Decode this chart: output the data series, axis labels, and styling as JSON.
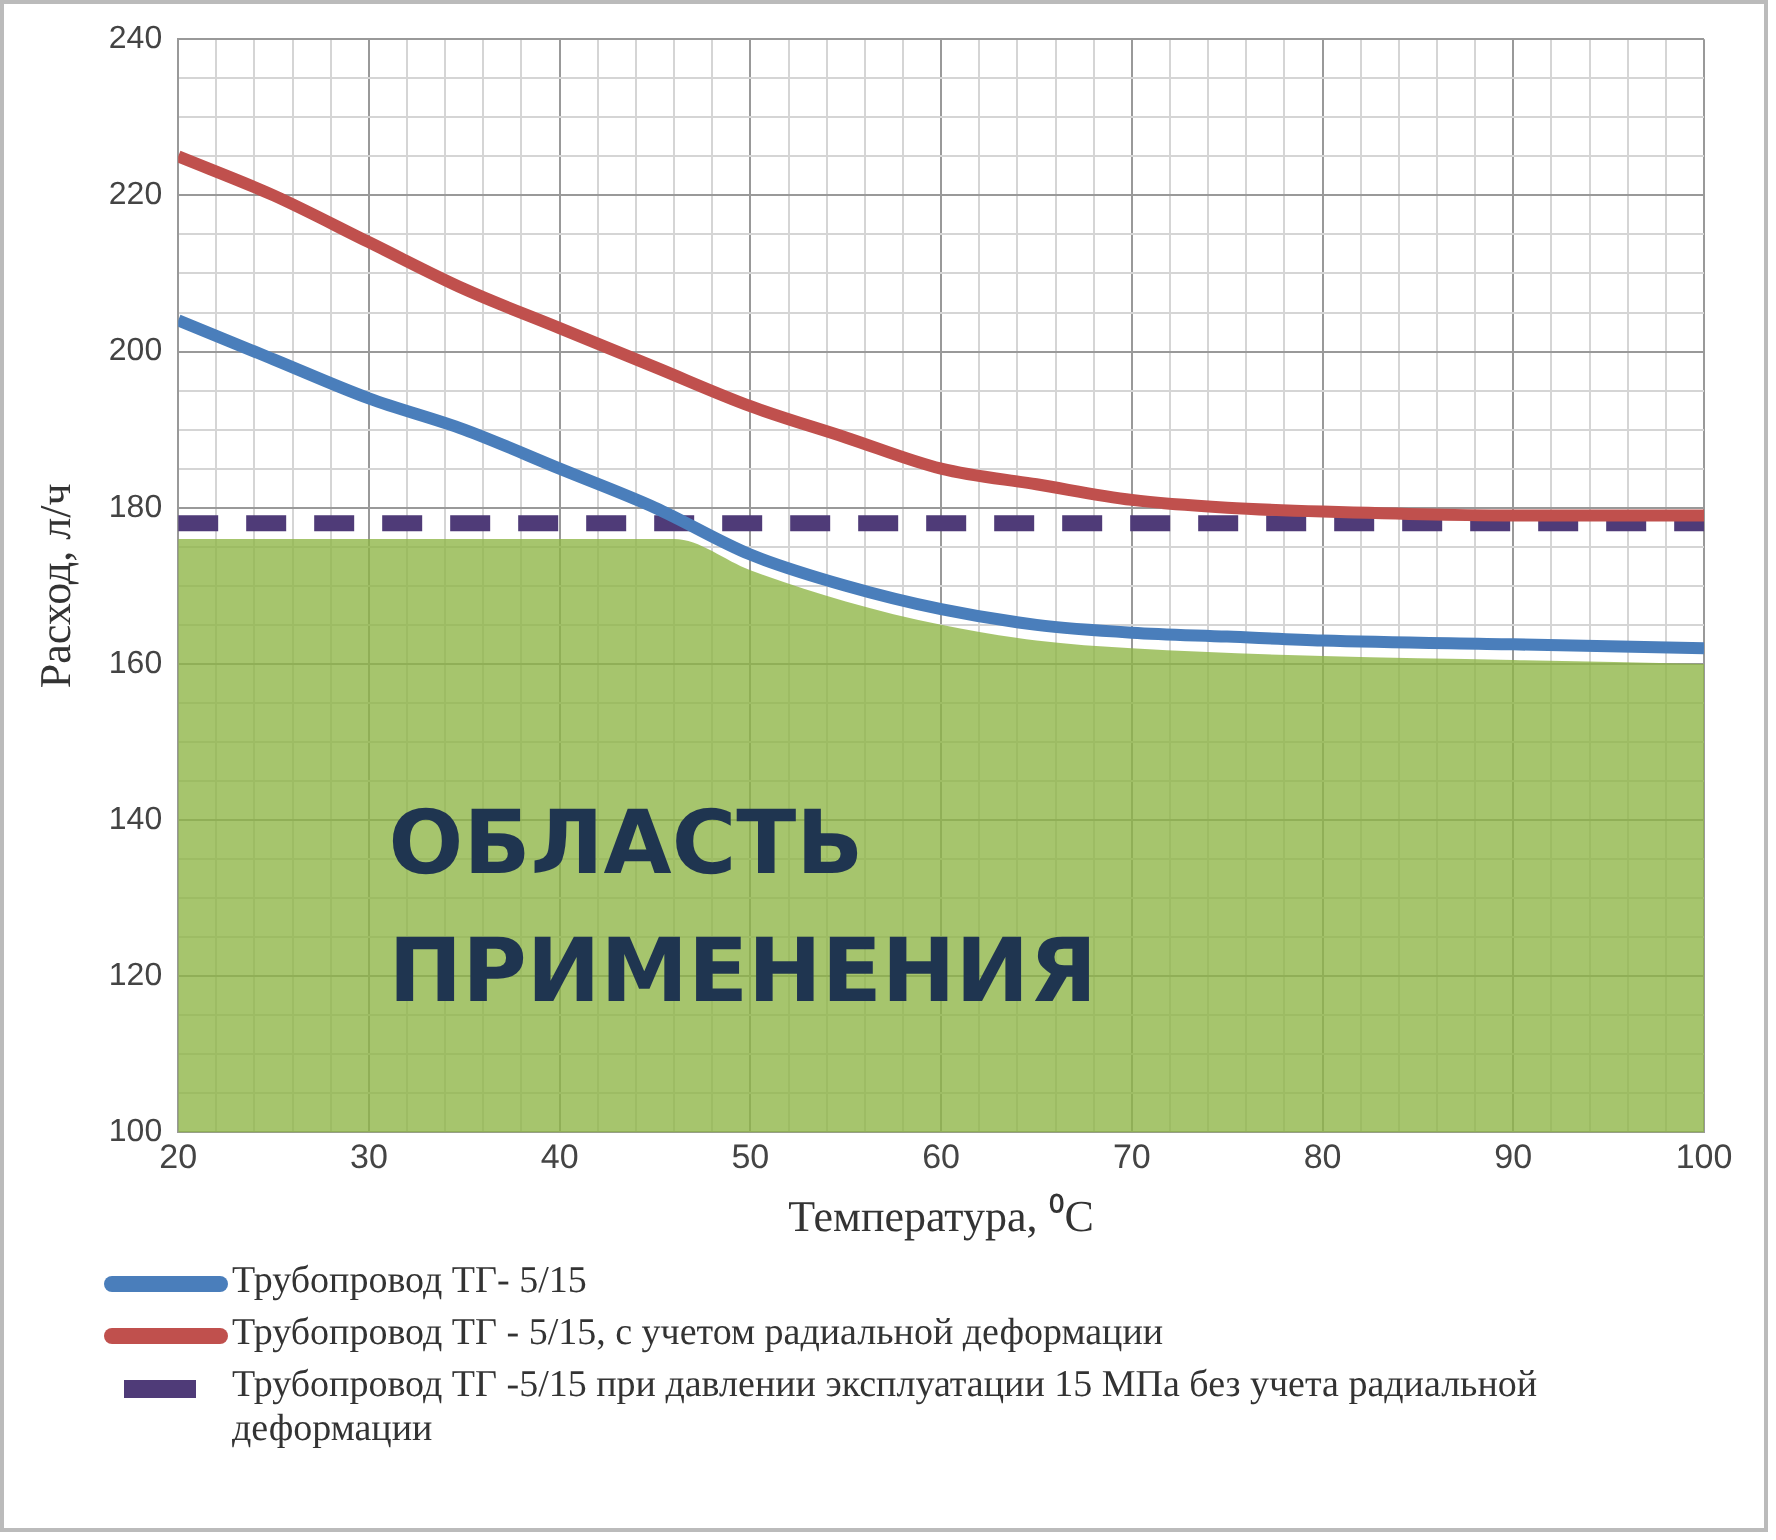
{
  "chart_data": {
    "type": "line",
    "xlabel": "Температура, ⁰C",
    "ylabel": "Расход, л/ч",
    "xlim": [
      20,
      100
    ],
    "ylim": [
      100,
      240
    ],
    "xticks": [
      20,
      {
        "value": 22,
        "label": null
      },
      {
        "value": 24,
        "label": null
      },
      {
        "value": 26,
        "label": null
      },
      {
        "value": 28,
        "label": null
      },
      30,
      {
        "value": 32,
        "label": null
      },
      {
        "value": 34,
        "label": null
      },
      {
        "value": 36,
        "label": null
      },
      {
        "value": 38,
        "label": null
      },
      40,
      {
        "value": 42,
        "label": null
      },
      {
        "value": 44,
        "label": null
      },
      {
        "value": 46,
        "label": null
      },
      {
        "value": 48,
        "label": null
      },
      50,
      {
        "value": 52,
        "label": null
      },
      {
        "value": 54,
        "label": null
      },
      {
        "value": 56,
        "label": null
      },
      {
        "value": 58,
        "label": null
      },
      60,
      {
        "value": 62,
        "label": null
      },
      {
        "value": 64,
        "label": null
      },
      {
        "value": 66,
        "label": null
      },
      {
        "value": 68,
        "label": null
      },
      70,
      {
        "value": 72,
        "label": null
      },
      {
        "value": 74,
        "label": null
      },
      {
        "value": 76,
        "label": null
      },
      {
        "value": 78,
        "label": null
      },
      80,
      {
        "value": 82,
        "label": null
      },
      {
        "value": 84,
        "label": null
      },
      {
        "value": 86,
        "label": null
      },
      {
        "value": 88,
        "label": null
      },
      90,
      {
        "value": 92,
        "label": null
      },
      {
        "value": 94,
        "label": null
      },
      {
        "value": 96,
        "label": null
      },
      {
        "value": 98,
        "label": null
      },
      100
    ],
    "yticks": [
      100,
      {
        "value": 105,
        "label": null
      },
      {
        "value": 110,
        "label": null
      },
      {
        "value": 115,
        "label": null
      },
      120,
      {
        "value": 125,
        "label": null
      },
      {
        "value": 130,
        "label": null
      },
      {
        "value": 135,
        "label": null
      },
      140,
      {
        "value": 145,
        "label": null
      },
      {
        "value": 150,
        "label": null
      },
      {
        "value": 155,
        "label": null
      },
      160,
      {
        "value": 165,
        "label": null
      },
      {
        "value": 170,
        "label": null
      },
      {
        "value": 175,
        "label": null
      },
      180,
      {
        "value": 185,
        "label": null
      },
      {
        "value": 190,
        "label": null
      },
      {
        "value": 195,
        "label": null
      },
      200,
      {
        "value": 205,
        "label": null
      },
      {
        "value": 210,
        "label": null
      },
      {
        "value": 215,
        "label": null
      },
      220,
      {
        "value": 225,
        "label": null
      },
      {
        "value": 230,
        "label": null
      },
      {
        "value": 235,
        "label": null
      },
      240
    ],
    "grid": true,
    "legend": "bottom",
    "series": [
      {
        "type": "area",
        "color": "#8db545",
        "x": [
          20,
          46,
          50,
          55,
          60,
          65,
          70,
          80,
          90,
          100
        ],
        "values": [
          176,
          176,
          172,
          168,
          165,
          163,
          162,
          161,
          160.5,
          160
        ]
      },
      {
        "name": "Трубопровод ТГ- 5/15",
        "color": "#4a7ebb",
        "line_style": "solid",
        "x": [
          20,
          25,
          30,
          35,
          40,
          45,
          50,
          55,
          60,
          65,
          70,
          75,
          80,
          90,
          100
        ],
        "values": [
          204,
          199,
          194,
          190,
          185,
          180,
          174,
          170,
          167,
          165,
          164,
          163.5,
          163,
          162.5,
          162
        ]
      },
      {
        "name": "Трубопровод ТГ - 5/15, с учетом радиальной деформации",
        "color": "#c0504d",
        "line_style": "solid",
        "x": [
          20,
          25,
          30,
          35,
          40,
          45,
          50,
          55,
          60,
          65,
          70,
          75,
          80,
          90,
          100
        ],
        "values": [
          225,
          220,
          214,
          208,
          203,
          198,
          193,
          189,
          185,
          183,
          181,
          180,
          179.5,
          179,
          179
        ]
      },
      {
        "name": "Трубопровод ТГ -5/15 при давлении эксплуатации  15 МПа без учета радиальной деформации",
        "color": "#4f3b78",
        "line_style": "dashed",
        "x": [
          20,
          100
        ],
        "values": [
          178,
          178
        ]
      }
    ],
    "annotations": [
      "ОБЛАСТЬ ПРИМЕНЕНИЯ"
    ]
  }
}
